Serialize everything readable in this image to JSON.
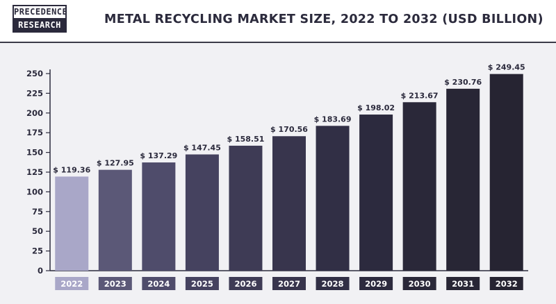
{
  "logo": {
    "line1": "PRECEDENCE",
    "line2": "RESEARCH"
  },
  "chart_data": {
    "type": "bar",
    "title": "METAL RECYCLING MARKET SIZE, 2022 TO 2032 (USD BILLION)",
    "categories": [
      "2022",
      "2023",
      "2024",
      "2025",
      "2026",
      "2027",
      "2028",
      "2029",
      "2030",
      "2031",
      "2032"
    ],
    "values": [
      119.36,
      127.95,
      137.29,
      147.45,
      158.51,
      170.56,
      183.69,
      198.02,
      213.67,
      230.76,
      249.45
    ],
    "value_labels": [
      "$ 119.36",
      "$ 127.95",
      "$ 137.29",
      "$ 147.45",
      "$ 158.51",
      "$ 170.56",
      "$ 183.69",
      "$ 198.02",
      "$ 213.67",
      "$ 230.76",
      "$ 249.45"
    ],
    "yticks": [
      0,
      25,
      50,
      75,
      100,
      125,
      150,
      175,
      200,
      225,
      250
    ],
    "ylim": [
      0,
      250
    ],
    "xlabel": "",
    "ylabel": "",
    "grid": false,
    "colors": [
      "#a9a7c8",
      "#5b5877",
      "#4f4c6b",
      "#45425f",
      "#3e3b55",
      "#38354d",
      "#312f45",
      "#2c2a3e",
      "#2a2839",
      "#282635",
      "#262432"
    ]
  }
}
